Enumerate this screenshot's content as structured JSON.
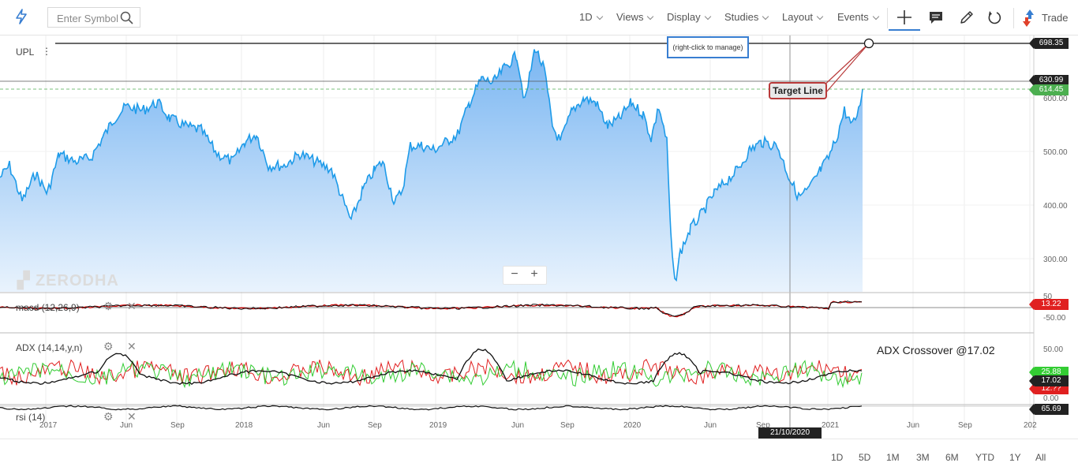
{
  "toolbar": {
    "search_placeholder": "Enter Symbol",
    "menus": [
      "1D",
      "Views",
      "Display",
      "Studies",
      "Layout",
      "Events"
    ],
    "trade_label": "Trade"
  },
  "chart": {
    "symbol": "UPL",
    "watermark": "ZERODHA",
    "manage_hint": "(right-click to manage)",
    "target_label": "Target Line",
    "y_ticks": [
      "600.00",
      "500.00",
      "400.00",
      "300.00"
    ],
    "price_tags": {
      "target": "698.35",
      "high": "630.99",
      "last": "614.45",
      "macd": "13.22",
      "adx_top": "25.88",
      "adx_mid": "17.02",
      "adx_low": "12.??",
      "rsi": "65.69"
    },
    "x_ticks": [
      "2017",
      "Jun",
      "Sep",
      "2018",
      "Jun",
      "Sep",
      "2019",
      "Jun",
      "Sep",
      "2020",
      "Jun",
      "Sep",
      "2021",
      "Jun",
      "Sep",
      "202"
    ],
    "crosshair_date": "21/10/2020"
  },
  "panes": {
    "macd": {
      "label": "macd (12,26,9)",
      "ticks": [
        "50",
        "-50.00"
      ]
    },
    "adx": {
      "label": "ADX (14,14,y,n)",
      "ticks": [
        "50.00",
        "0.00"
      ],
      "annotation": "ADX Crossover @17.02"
    },
    "rsi": {
      "label": "rsi (14)"
    }
  },
  "ranges": [
    "1D",
    "5D",
    "1M",
    "3M",
    "6M",
    "YTD",
    "1Y",
    "All"
  ],
  "colors": {
    "accent": "#387ed1",
    "price_line": "#1e9be9",
    "adx_red": "#e02020",
    "adx_green": "#33cc33"
  }
}
